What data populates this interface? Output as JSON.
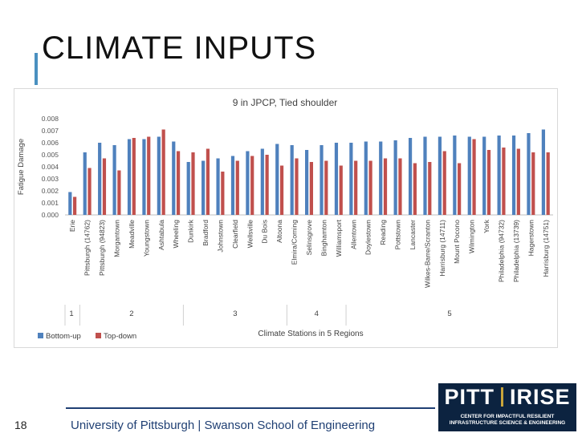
{
  "slide": {
    "title": "CLIMATE INPUTS",
    "page_number": "18",
    "footer": "University of Pittsburgh | Swanson School of Engineering",
    "logo": {
      "left": "PITT",
      "right": "IRISE",
      "line1": "CENTER FOR IMPACTFUL RESILIENT",
      "line2": "INFRASTRUCTURE SCIENCE & ENGINEERING"
    }
  },
  "colors": {
    "bottom_up": "#4f81bd",
    "top_down": "#c0504d",
    "accent": "#4a90c0",
    "footer": "#1f3f73"
  },
  "chart_data": {
    "type": "bar",
    "title": "9 in JPCP, Tied shoulder",
    "xlabel": "Climate Stations in 5 Regions",
    "ylabel": "Fatigue Damage",
    "ylim": [
      0,
      0.008
    ],
    "yticks": [
      "0.000",
      "0.001",
      "0.002",
      "0.003",
      "0.004",
      "0.005",
      "0.006",
      "0.007",
      "0.008"
    ],
    "grid": false,
    "legend_position": "bottom-left",
    "categories": [
      "Erie",
      "Pittsburgh (14762)",
      "Pittsburgh (94823)",
      "Morgantown",
      "Meadville",
      "Youngstown",
      "Ashtabula",
      "Wheeling",
      "Dunkirk",
      "Bradford",
      "Johnstown",
      "Clearfield",
      "Wellsville",
      "Du Bois",
      "Altoona",
      "Elmira/Corning",
      "Selinsgrove",
      "Binghamton",
      "Williamsport",
      "Allentown",
      "Doylestown",
      "Reading",
      "Pottstown",
      "Lancaster",
      "Wilkes-Barre/Scranton",
      "Harrisburg (14711)",
      "Mount Pocono",
      "Wilmington",
      "York",
      "Philadelphia (94732)",
      "Philadelphia (13739)",
      "Hagerstown",
      "Harrisburg (14751)"
    ],
    "series": [
      {
        "name": "Bottom-up",
        "values": [
          0.0019,
          0.0052,
          0.006,
          0.0058,
          0.0063,
          0.0063,
          0.0065,
          0.0061,
          0.0044,
          0.0045,
          0.0047,
          0.0049,
          0.0053,
          0.0055,
          0.0059,
          0.0058,
          0.0054,
          0.0058,
          0.006,
          0.006,
          0.0061,
          0.0061,
          0.0062,
          0.0064,
          0.0065,
          0.0065,
          0.0066,
          0.0065,
          0.0065,
          0.0066,
          0.0066,
          0.0068,
          0.0071
        ]
      },
      {
        "name": "Top-down",
        "values": [
          0.0015,
          0.0039,
          0.0047,
          0.0037,
          0.0064,
          0.0065,
          0.0071,
          0.0053,
          0.0052,
          0.0055,
          0.0036,
          0.0045,
          0.0049,
          0.005,
          0.0041,
          0.0047,
          0.0044,
          0.0045,
          0.0041,
          0.0045,
          0.0045,
          0.0047,
          0.0047,
          0.0043,
          0.0044,
          0.0053,
          0.0043,
          0.0063,
          0.0054,
          0.0056,
          0.0055,
          0.0052,
          0.0052
        ]
      }
    ],
    "regions": [
      {
        "label": "1",
        "start": 0,
        "end": 0
      },
      {
        "label": "2",
        "start": 1,
        "end": 7
      },
      {
        "label": "3",
        "start": 8,
        "end": 14
      },
      {
        "label": "4",
        "start": 15,
        "end": 18
      },
      {
        "label": "5",
        "start": 19,
        "end": 32
      }
    ]
  }
}
